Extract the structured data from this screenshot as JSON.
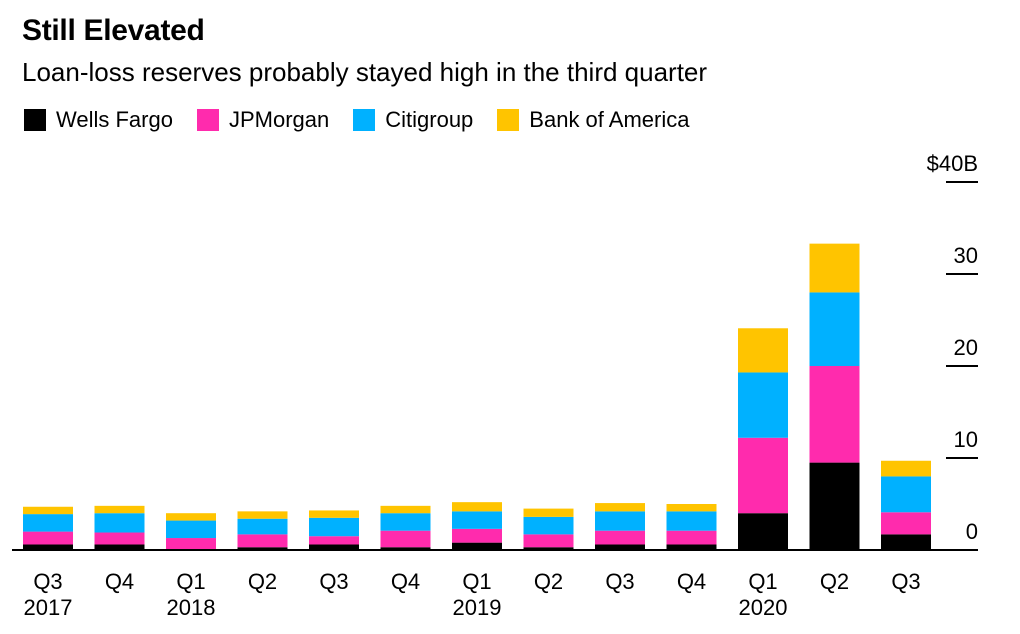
{
  "title": "Still Elevated",
  "subtitle": "Loan-loss reserves probably stayed high in the third quarter",
  "chart_data": {
    "type": "bar",
    "stacked": true,
    "title": "Still Elevated",
    "subtitle": "Loan-loss reserves probably stayed high in the third quarter",
    "categories": [
      "Q3 2017",
      "Q4 2017",
      "Q1 2018",
      "Q2 2018",
      "Q3 2018",
      "Q4 2018",
      "Q1 2019",
      "Q2 2019",
      "Q3 2019",
      "Q4 2019",
      "Q1 2020",
      "Q2 2020",
      "Q3 2020"
    ],
    "x_tick_labels": [
      {
        "quarter": "Q3",
        "year": "2017"
      },
      {
        "quarter": "Q4",
        "year": ""
      },
      {
        "quarter": "Q1",
        "year": "2018"
      },
      {
        "quarter": "Q2",
        "year": ""
      },
      {
        "quarter": "Q3",
        "year": ""
      },
      {
        "quarter": "Q4",
        "year": ""
      },
      {
        "quarter": "Q1",
        "year": "2019"
      },
      {
        "quarter": "Q2",
        "year": ""
      },
      {
        "quarter": "Q3",
        "year": ""
      },
      {
        "quarter": "Q4",
        "year": ""
      },
      {
        "quarter": "Q1",
        "year": "2020"
      },
      {
        "quarter": "Q2",
        "year": ""
      },
      {
        "quarter": "Q3",
        "year": ""
      }
    ],
    "series": [
      {
        "name": "Wells Fargo",
        "color": "#000000",
        "values": [
          0.6,
          0.6,
          0.1,
          0.3,
          0.6,
          0.3,
          0.8,
          0.3,
          0.6,
          0.6,
          4.0,
          9.5,
          1.7
        ]
      },
      {
        "name": "JPMorgan",
        "color": "#ff2bad",
        "values": [
          1.4,
          1.3,
          1.2,
          1.4,
          0.9,
          1.8,
          1.5,
          1.4,
          1.5,
          1.5,
          8.2,
          10.5,
          2.4
        ]
      },
      {
        "name": "Citigroup",
        "color": "#00b1ff",
        "values": [
          1.9,
          2.1,
          1.9,
          1.7,
          2.0,
          1.9,
          1.9,
          1.9,
          2.1,
          2.1,
          7.1,
          8.0,
          3.9
        ]
      },
      {
        "name": "Bank of America",
        "color": "#ffc400",
        "values": [
          0.8,
          0.8,
          0.8,
          0.8,
          0.8,
          0.8,
          1.0,
          0.9,
          0.9,
          0.8,
          4.8,
          5.3,
          1.7
        ]
      }
    ],
    "y_axis": {
      "min": 0,
      "max": 40,
      "ticks": [
        {
          "value": 0,
          "label": "0"
        },
        {
          "value": 10,
          "label": "10"
        },
        {
          "value": 20,
          "label": "20"
        },
        {
          "value": 30,
          "label": "30"
        },
        {
          "value": 40,
          "label": "$40B"
        }
      ],
      "position": "right"
    },
    "legend_position": "top-left",
    "grid": false
  }
}
